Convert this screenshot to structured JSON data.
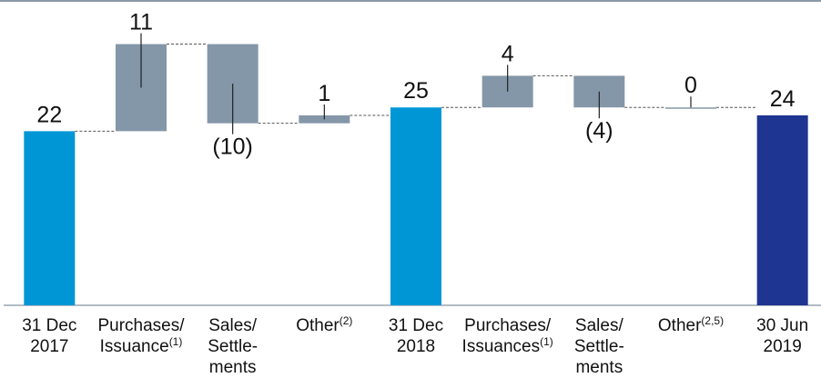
{
  "chart_data": {
    "type": "waterfall",
    "categories": [
      [
        "31 Dec",
        "2017"
      ],
      [
        "Purchases/",
        "Issuance"
      ],
      [
        "Sales/",
        "Settle-",
        "ments"
      ],
      [
        "Other"
      ],
      [
        "31 Dec",
        "2018"
      ],
      [
        "Purchases/",
        "Issuances"
      ],
      [
        "Sales/",
        "Settle-",
        "ments"
      ],
      [
        "Other"
      ],
      [
        "30 Jun",
        "2019"
      ]
    ],
    "category_notes": [
      null,
      "(1)",
      null,
      "(2)",
      null,
      "(1)",
      null,
      "(2,5)",
      null
    ],
    "measure": [
      "total",
      "relative",
      "relative",
      "relative",
      "total",
      "relative",
      "relative",
      "relative",
      "total"
    ],
    "values": [
      22,
      11,
      -10,
      1,
      25,
      4,
      -4,
      0,
      24
    ],
    "value_labels": [
      "22",
      "11",
      "(10)",
      "1",
      "25",
      "4",
      "(4)",
      "0",
      "24"
    ],
    "colors": [
      "#0096d6",
      "#8497a8",
      "#8497a8",
      "#8497a8",
      "#0096d6",
      "#8497a8",
      "#8497a8",
      "#8497a8",
      "#1f3592"
    ],
    "ylim": [
      0,
      38
    ]
  }
}
